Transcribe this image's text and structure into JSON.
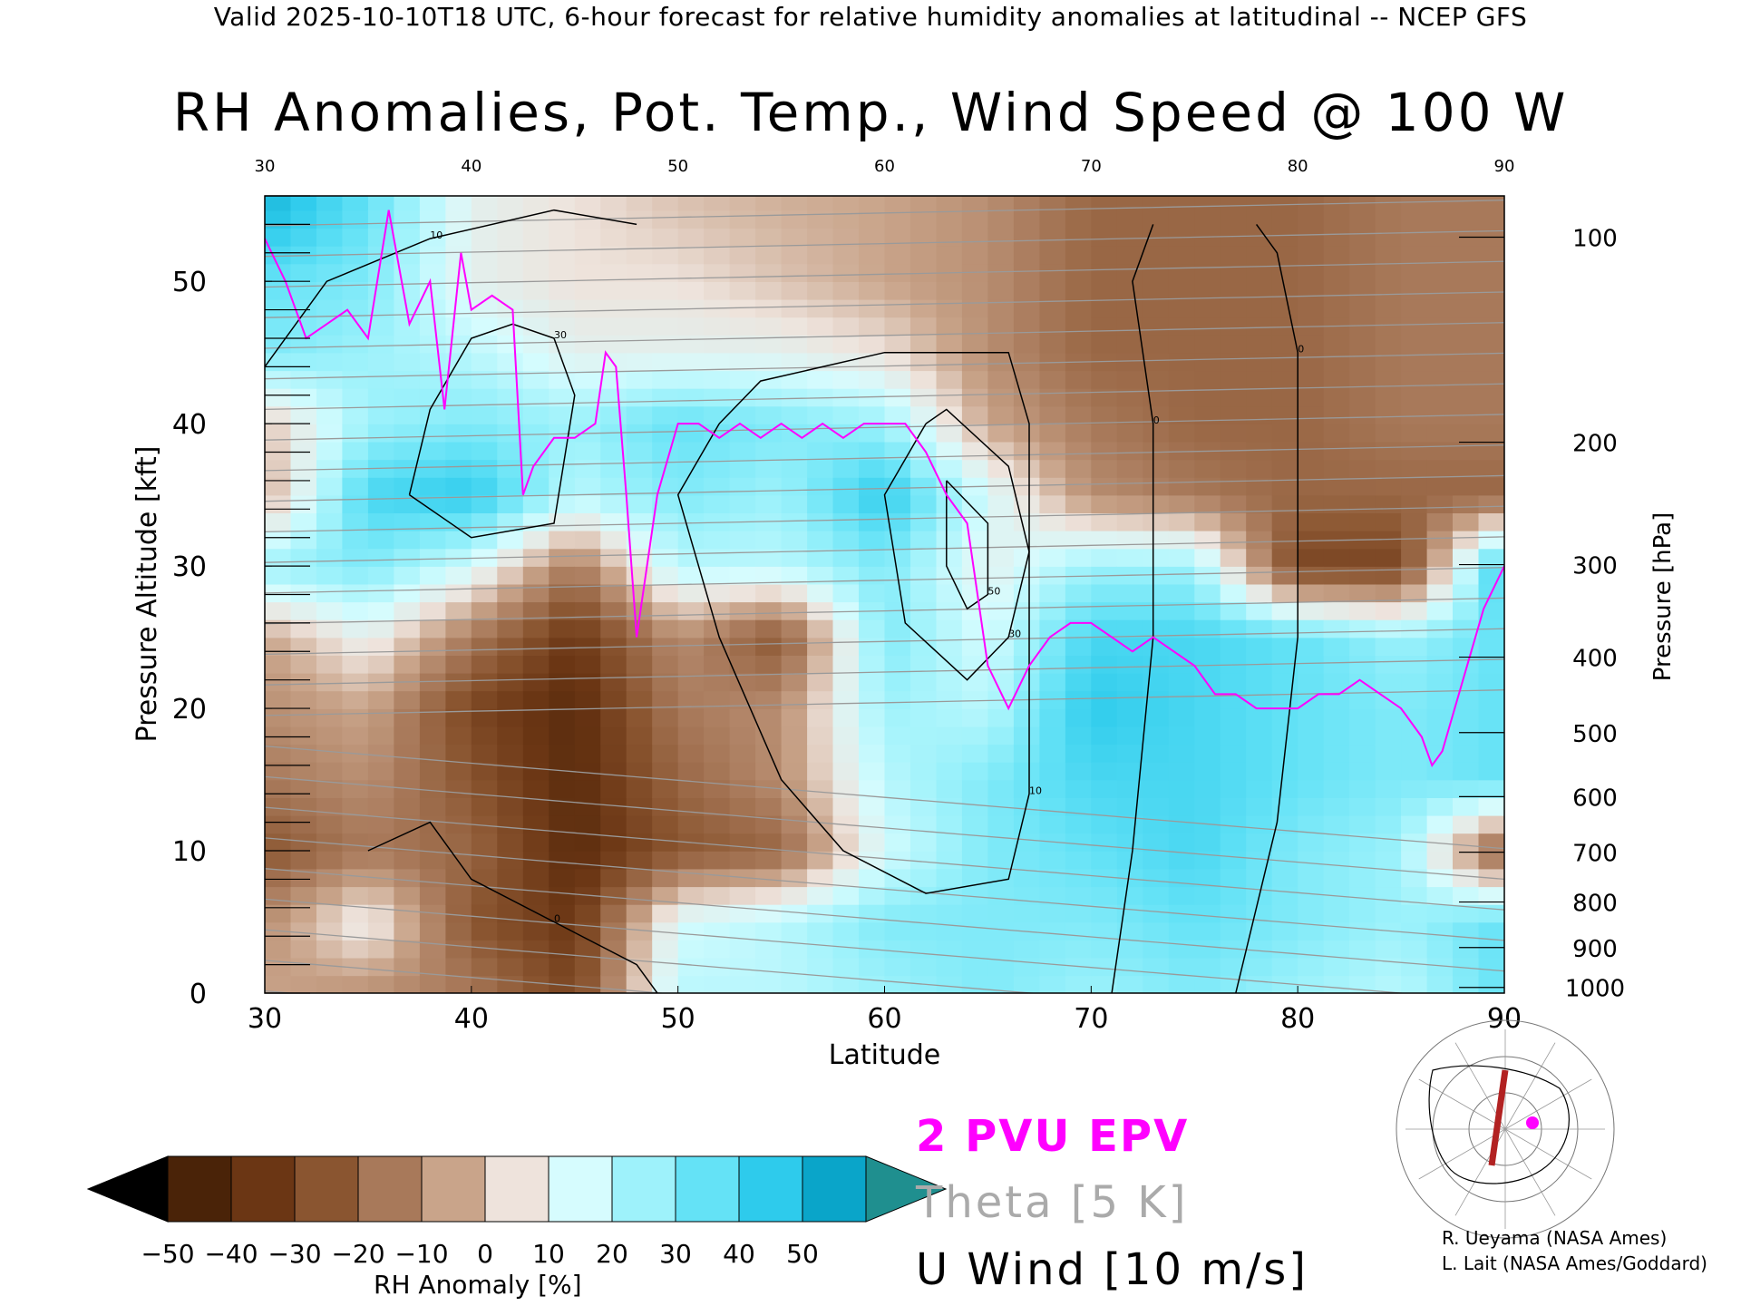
{
  "header": {
    "valid_line": "Valid 2025-10-10T18 UTC, 6-hour forecast for relative humidity anomalies at latitudinal -- NCEP GFS",
    "title": "RH Anomalies, Pot. Temp., Wind Speed @ 100 W"
  },
  "axes": {
    "xlabel": "Latitude",
    "ylabel_left": "Pressure Altitude [kft]",
    "ylabel_right": "Pressure [hPa]",
    "x_ticks": [
      "30",
      "40",
      "50",
      "60",
      "70",
      "80",
      "90"
    ],
    "x_ticks_top": [
      "30",
      "40",
      "50",
      "60",
      "70",
      "80",
      "90"
    ],
    "y_ticks_left": [
      "0",
      "10",
      "20",
      "30",
      "40",
      "50"
    ],
    "y_ticks_right": [
      "100",
      "200",
      "300",
      "400",
      "500",
      "600",
      "700",
      "800",
      "900",
      "1000"
    ]
  },
  "legend": {
    "epv": "2 PVU EPV",
    "theta": "Theta [5 K]",
    "uwind": "U Wind [10 m/s]"
  },
  "colorbar": {
    "label": "RH Anomaly [%]",
    "ticks": [
      "−50",
      "−40",
      "−30",
      "−20",
      "−10",
      "0",
      "10",
      "20",
      "30",
      "40",
      "50"
    ],
    "colors": [
      "#4a2308",
      "#6b3614",
      "#8a5530",
      "#a8795a",
      "#c9a48a",
      "#eee3dc",
      "#d6fcfe",
      "#9ef2fb",
      "#64e2f6",
      "#2ecbec",
      "#0aa5c9"
    ],
    "under_color": "#000000",
    "over_color": "#1f8f8f"
  },
  "credits": {
    "line1": "R. Ueyama (NASA Ames)",
    "line2": "L. Lait (NASA Ames/Goddard)"
  },
  "chart_data": {
    "type": "heatmap",
    "title": "RH Anomalies, Pot. Temp., Wind Speed @ 100 W",
    "xlabel": "Latitude",
    "ylabel": "Pressure Altitude [kft]",
    "xlim": [
      30,
      90
    ],
    "ylim": [
      0,
      56
    ],
    "x_ticks": [
      30,
      40,
      50,
      60,
      70,
      80,
      90
    ],
    "y_ticks": [
      0,
      10,
      20,
      30,
      40,
      50
    ],
    "pressure_ticks_hpa": [
      {
        "p": 100,
        "kft": 53.1
      },
      {
        "p": 200,
        "kft": 38.7
      },
      {
        "p": 300,
        "kft": 30.1
      },
      {
        "p": 400,
        "kft": 23.6
      },
      {
        "p": 500,
        "kft": 18.3
      },
      {
        "p": 600,
        "kft": 13.8
      },
      {
        "p": 700,
        "kft": 9.9
      },
      {
        "p": 800,
        "kft": 6.4
      },
      {
        "p": 900,
        "kft": 3.2
      },
      {
        "p": 1000,
        "kft": 0.4
      }
    ],
    "rh_anomaly_grid": {
      "lats": [
        30,
        35,
        40,
        45,
        50,
        55,
        60,
        65,
        70,
        75,
        80,
        85,
        90
      ],
      "kft": [
        55,
        50,
        45,
        40,
        35,
        30,
        25,
        20,
        15,
        10,
        5,
        0
      ],
      "values": [
        [
          45,
          30,
          5,
          0,
          -5,
          -8,
          -10,
          -15,
          -25,
          -25,
          -25,
          -20,
          -20
        ],
        [
          30,
          25,
          5,
          0,
          0,
          -5,
          -10,
          -15,
          -25,
          -25,
          -25,
          -20,
          -20
        ],
        [
          25,
          20,
          15,
          5,
          5,
          5,
          0,
          -15,
          -25,
          -25,
          -25,
          -20,
          -20
        ],
        [
          -5,
          20,
          25,
          20,
          30,
          25,
          20,
          -10,
          -20,
          -25,
          -25,
          -20,
          -20
        ],
        [
          -10,
          35,
          40,
          15,
          25,
          20,
          40,
          10,
          -15,
          -20,
          -25,
          -25,
          -25
        ],
        [
          20,
          25,
          10,
          -20,
          15,
          15,
          25,
          5,
          20,
          20,
          -35,
          -35,
          40
        ],
        [
          -10,
          5,
          -20,
          -40,
          -15,
          -30,
          25,
          10,
          35,
          35,
          30,
          20,
          30
        ],
        [
          -15,
          -10,
          -35,
          -45,
          -20,
          -15,
          20,
          15,
          40,
          35,
          30,
          25,
          30
        ],
        [
          -20,
          -15,
          -30,
          -45,
          -25,
          -15,
          15,
          25,
          35,
          35,
          30,
          25,
          30
        ],
        [
          -30,
          -20,
          -25,
          -45,
          -30,
          -25,
          10,
          25,
          30,
          35,
          25,
          20,
          -30
        ],
        [
          -15,
          5,
          -30,
          -40,
          10,
          15,
          25,
          25,
          25,
          30,
          25,
          20,
          30
        ],
        [
          -10,
          -15,
          -20,
          -35,
          15,
          15,
          20,
          25,
          20,
          25,
          20,
          15,
          30
        ]
      ]
    },
    "epv_2pvu": [
      [
        30,
        53
      ],
      [
        31,
        50
      ],
      [
        32,
        46
      ],
      [
        33,
        47
      ],
      [
        34,
        48
      ],
      [
        35,
        46
      ],
      [
        36,
        55
      ],
      [
        37,
        47
      ],
      [
        38,
        50
      ],
      [
        38.7,
        41
      ],
      [
        39.5,
        52
      ],
      [
        40,
        48
      ],
      [
        41,
        49
      ],
      [
        42,
        48
      ],
      [
        42.5,
        35
      ],
      [
        43,
        37
      ],
      [
        44,
        39
      ],
      [
        45,
        39
      ],
      [
        46,
        40
      ],
      [
        46.5,
        45
      ],
      [
        47,
        44
      ],
      [
        47.5,
        35
      ],
      [
        48,
        25
      ],
      [
        49,
        35
      ],
      [
        50,
        40
      ],
      [
        51,
        40
      ],
      [
        52,
        39
      ],
      [
        53,
        40
      ],
      [
        54,
        39
      ],
      [
        55,
        40
      ],
      [
        56,
        39
      ],
      [
        57,
        40
      ],
      [
        58,
        39
      ],
      [
        59,
        40
      ],
      [
        60,
        40
      ],
      [
        61,
        40
      ],
      [
        62,
        38
      ],
      [
        63,
        35
      ],
      [
        64,
        33
      ],
      [
        64.5,
        28
      ],
      [
        65,
        23
      ],
      [
        66,
        20
      ],
      [
        67,
        23
      ],
      [
        68,
        25
      ],
      [
        69,
        26
      ],
      [
        70,
        26
      ],
      [
        71,
        25
      ],
      [
        72,
        24
      ],
      [
        73,
        25
      ],
      [
        74,
        24
      ],
      [
        75,
        23
      ],
      [
        76,
        21
      ],
      [
        77,
        21
      ],
      [
        78,
        20
      ],
      [
        79,
        20
      ],
      [
        80,
        20
      ],
      [
        81,
        21
      ],
      [
        82,
        21
      ],
      [
        83,
        22
      ],
      [
        84,
        21
      ],
      [
        85,
        20
      ],
      [
        86,
        18
      ],
      [
        86.5,
        16
      ],
      [
        87,
        17
      ],
      [
        88,
        22
      ],
      [
        89,
        27
      ],
      [
        90,
        30
      ]
    ],
    "theta_contours_K": [
      290,
      295,
      300,
      305,
      310,
      315,
      320,
      325,
      330,
      335,
      340,
      345,
      350,
      355,
      360,
      365,
      370,
      375,
      380,
      385,
      390,
      395,
      400,
      405,
      410,
      415,
      420
    ],
    "u_wind_contours_ms": [
      {
        "level": 10,
        "points": [
          [
            30,
            44
          ],
          [
            33,
            50
          ],
          [
            38,
            53
          ],
          [
            44,
            55
          ],
          [
            48,
            54
          ]
        ]
      },
      {
        "level": 30,
        "points": [
          [
            37,
            35
          ],
          [
            38,
            41
          ],
          [
            40,
            46
          ],
          [
            42,
            47
          ],
          [
            44,
            46
          ],
          [
            45,
            42
          ],
          [
            44,
            33
          ],
          [
            40,
            32
          ],
          [
            37,
            35
          ]
        ]
      },
      {
        "level": 30,
        "points": [
          [
            62,
            40
          ],
          [
            60,
            35
          ],
          [
            61,
            26
          ],
          [
            64,
            22
          ],
          [
            66,
            25
          ],
          [
            67,
            31
          ],
          [
            66,
            37
          ],
          [
            63,
            41
          ],
          [
            62,
            40
          ]
        ]
      },
      {
        "level": 50,
        "points": [
          [
            63,
            36
          ],
          [
            63,
            30
          ],
          [
            64,
            27
          ],
          [
            65,
            28
          ],
          [
            65,
            33
          ],
          [
            63,
            36
          ]
        ]
      },
      {
        "level": 10,
        "points": [
          [
            52,
            40
          ],
          [
            50,
            35
          ],
          [
            52,
            25
          ],
          [
            55,
            15
          ],
          [
            58,
            10
          ],
          [
            62,
            7
          ],
          [
            66,
            8
          ],
          [
            67,
            14
          ],
          [
            67,
            25
          ],
          [
            67,
            40
          ],
          [
            66,
            45
          ],
          [
            60,
            45
          ],
          [
            54,
            43
          ],
          [
            52,
            40
          ]
        ]
      },
      {
        "level": 0,
        "points": [
          [
            35,
            10
          ],
          [
            38,
            12
          ],
          [
            40,
            8
          ],
          [
            44,
            5
          ],
          [
            48,
            2
          ],
          [
            49,
            0
          ]
        ]
      },
      {
        "level": 0,
        "points": [
          [
            71,
            0
          ],
          [
            72,
            10
          ],
          [
            73,
            25
          ],
          [
            73,
            40
          ],
          [
            72,
            50
          ],
          [
            73,
            54
          ]
        ]
      },
      {
        "level": 0,
        "points": [
          [
            77,
            0
          ],
          [
            79,
            12
          ],
          [
            80,
            25
          ],
          [
            80,
            45
          ],
          [
            79,
            52
          ],
          [
            78,
            54
          ]
        ]
      }
    ]
  }
}
